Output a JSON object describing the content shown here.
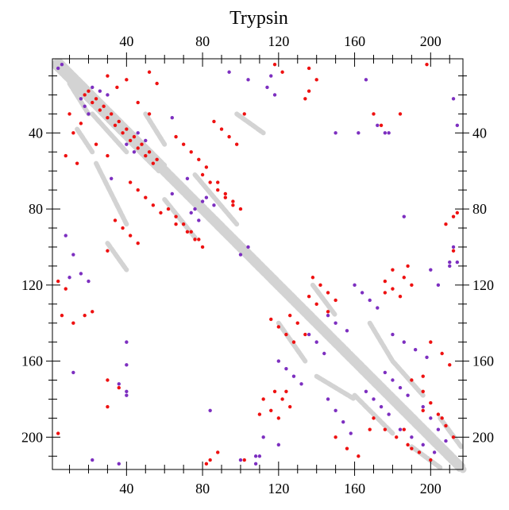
{
  "chart_data": {
    "type": "scatter",
    "subtype": "protein contact map",
    "title": "Trypsin",
    "xlabel": "",
    "ylabel": "",
    "xlim": [
      1,
      217
    ],
    "ylim": [
      1,
      217
    ],
    "y_inverted": true,
    "x_ticks": [
      40,
      80,
      120,
      160,
      200
    ],
    "y_ticks": [
      40,
      80,
      120,
      160,
      200
    ],
    "colors": {
      "background_contacts": "#d3d3d3",
      "red_points": "#ee1111",
      "purple_points": "#7d2fc0",
      "axis": "#000000"
    },
    "background_segments": [
      [
        3,
        3,
        217,
        217
      ],
      [
        4,
        2,
        217,
        215
      ],
      [
        2,
        4,
        215,
        217
      ],
      [
        5,
        2,
        60,
        57
      ],
      [
        2,
        5,
        57,
        60
      ],
      [
        10,
        14,
        20,
        30
      ],
      [
        22,
        30,
        40,
        50
      ],
      [
        14,
        38,
        22,
        50
      ],
      [
        60,
        75,
        76,
        95
      ],
      [
        76,
        62,
        98,
        88
      ],
      [
        24,
        56,
        40,
        88
      ],
      [
        50,
        30,
        60,
        46
      ],
      [
        120,
        140,
        134,
        160
      ],
      [
        138,
        120,
        150,
        136
      ],
      [
        160,
        178,
        180,
        198
      ],
      [
        180,
        160,
        196,
        178
      ],
      [
        190,
        205,
        205,
        216
      ],
      [
        205,
        190,
        216,
        205
      ],
      [
        30,
        98,
        40,
        112
      ],
      [
        98,
        30,
        112,
        40
      ],
      [
        140,
        168,
        160,
        180
      ],
      [
        168,
        140,
        180,
        160
      ]
    ],
    "series": [
      {
        "color_key": "red_points",
        "points": [
          [
            18,
            20
          ],
          [
            20,
            18
          ],
          [
            22,
            24
          ],
          [
            24,
            22
          ],
          [
            26,
            28
          ],
          [
            28,
            26
          ],
          [
            30,
            32
          ],
          [
            32,
            30
          ],
          [
            34,
            36
          ],
          [
            36,
            34
          ],
          [
            38,
            40
          ],
          [
            40,
            38
          ],
          [
            42,
            44
          ],
          [
            44,
            42
          ],
          [
            46,
            48
          ],
          [
            48,
            46
          ],
          [
            50,
            52
          ],
          [
            52,
            50
          ],
          [
            54,
            56
          ],
          [
            56,
            54
          ],
          [
            30,
            10
          ],
          [
            10,
            30
          ],
          [
            35,
            16
          ],
          [
            16,
            35
          ],
          [
            40,
            12
          ],
          [
            12,
            40
          ],
          [
            46,
            24
          ],
          [
            24,
            46
          ],
          [
            52,
            30
          ],
          [
            30,
            52
          ],
          [
            62,
            80
          ],
          [
            80,
            62
          ],
          [
            66,
            84
          ],
          [
            84,
            66
          ],
          [
            70,
            88
          ],
          [
            88,
            70
          ],
          [
            74,
            92
          ],
          [
            92,
            74
          ],
          [
            78,
            96
          ],
          [
            96,
            78
          ],
          [
            66,
            42
          ],
          [
            42,
            66
          ],
          [
            70,
            46
          ],
          [
            46,
            70
          ],
          [
            74,
            50
          ],
          [
            50,
            74
          ],
          [
            78,
            54
          ],
          [
            54,
            78
          ],
          [
            82,
            58
          ],
          [
            58,
            82
          ],
          [
            86,
            34
          ],
          [
            34,
            86
          ],
          [
            90,
            38
          ],
          [
            38,
            90
          ],
          [
            94,
            42
          ],
          [
            42,
            94
          ],
          [
            98,
            46
          ],
          [
            46,
            98
          ],
          [
            102,
            30
          ],
          [
            30,
            102
          ],
          [
            88,
            66
          ],
          [
            66,
            88
          ],
          [
            92,
            72
          ],
          [
            72,
            92
          ],
          [
            96,
            76
          ],
          [
            76,
            96
          ],
          [
            100,
            80
          ],
          [
            80,
            100
          ],
          [
            118,
            4
          ],
          [
            4,
            118
          ],
          [
            122,
            8
          ],
          [
            8,
            122
          ],
          [
            136,
            6
          ],
          [
            6,
            136
          ],
          [
            140,
            12
          ],
          [
            12,
            140
          ],
          [
            126,
            136
          ],
          [
            136,
            126
          ],
          [
            130,
            140
          ],
          [
            140,
            130
          ],
          [
            134,
            146
          ],
          [
            146,
            134
          ],
          [
            138,
            116
          ],
          [
            116,
            138
          ],
          [
            142,
            120
          ],
          [
            120,
            142
          ],
          [
            146,
            124
          ],
          [
            124,
            146
          ],
          [
            150,
            128
          ],
          [
            128,
            150
          ],
          [
            118,
            176
          ],
          [
            176,
            118
          ],
          [
            122,
            180
          ],
          [
            180,
            122
          ],
          [
            126,
            184
          ],
          [
            184,
            126
          ],
          [
            110,
            188
          ],
          [
            188,
            110
          ],
          [
            170,
            190
          ],
          [
            190,
            170
          ],
          [
            176,
            196
          ],
          [
            196,
            176
          ],
          [
            182,
            200
          ],
          [
            200,
            182
          ],
          [
            188,
            204
          ],
          [
            204,
            188
          ],
          [
            194,
            208
          ],
          [
            208,
            194
          ],
          [
            200,
            212
          ],
          [
            212,
            200
          ],
          [
            206,
            190
          ],
          [
            190,
            206
          ],
          [
            196,
            186
          ],
          [
            186,
            196
          ],
          [
            180,
            112
          ],
          [
            112,
            180
          ],
          [
            186,
            116
          ],
          [
            116,
            186
          ],
          [
            190,
            120
          ],
          [
            120,
            190
          ],
          [
            176,
            124
          ],
          [
            124,
            176
          ],
          [
            200,
            150
          ],
          [
            150,
            200
          ],
          [
            206,
            156
          ],
          [
            156,
            206
          ],
          [
            210,
            162
          ],
          [
            162,
            210
          ],
          [
            196,
            168
          ],
          [
            168,
            196
          ],
          [
            214,
            82
          ],
          [
            82,
            214
          ],
          [
            212,
            102
          ],
          [
            102,
            212
          ],
          [
            198,
            4
          ],
          [
            4,
            198
          ],
          [
            184,
            30
          ],
          [
            30,
            184
          ],
          [
            52,
            8
          ],
          [
            8,
            52
          ],
          [
            56,
            14
          ],
          [
            14,
            56
          ],
          [
            30,
            170
          ],
          [
            170,
            30
          ],
          [
            36,
            174
          ],
          [
            174,
            36
          ],
          [
            18,
            136
          ],
          [
            136,
            18
          ],
          [
            22,
            134
          ],
          [
            134,
            22
          ],
          [
            84,
            212
          ],
          [
            212,
            84
          ],
          [
            88,
            208
          ],
          [
            208,
            88
          ]
        ]
      },
      {
        "color_key": "purple_points",
        "points": [
          [
            16,
            22
          ],
          [
            22,
            16
          ],
          [
            18,
            26
          ],
          [
            26,
            18
          ],
          [
            20,
            30
          ],
          [
            30,
            20
          ],
          [
            40,
            46
          ],
          [
            46,
            40
          ],
          [
            44,
            50
          ],
          [
            50,
            44
          ],
          [
            74,
            82
          ],
          [
            82,
            74
          ],
          [
            78,
            86
          ],
          [
            86,
            78
          ],
          [
            72,
            64
          ],
          [
            64,
            72
          ],
          [
            76,
            80
          ],
          [
            80,
            76
          ],
          [
            4,
            6
          ],
          [
            6,
            4
          ],
          [
            12,
            104
          ],
          [
            104,
            12
          ],
          [
            40,
            150
          ],
          [
            150,
            40
          ],
          [
            40,
            162
          ],
          [
            162,
            40
          ],
          [
            22,
            212
          ],
          [
            212,
            22
          ],
          [
            104,
            100
          ],
          [
            100,
            104
          ],
          [
            110,
            210
          ],
          [
            210,
            110
          ],
          [
            108,
            214
          ],
          [
            214,
            108
          ],
          [
            136,
            146
          ],
          [
            146,
            136
          ],
          [
            140,
            150
          ],
          [
            150,
            140
          ],
          [
            144,
            156
          ],
          [
            156,
            144
          ],
          [
            166,
            176
          ],
          [
            176,
            166
          ],
          [
            170,
            180
          ],
          [
            180,
            170
          ],
          [
            174,
            184
          ],
          [
            184,
            174
          ],
          [
            178,
            188
          ],
          [
            188,
            178
          ],
          [
            184,
            196
          ],
          [
            196,
            184
          ],
          [
            190,
            200
          ],
          [
            200,
            190
          ],
          [
            196,
            204
          ],
          [
            204,
            196
          ],
          [
            202,
            208
          ],
          [
            208,
            202
          ],
          [
            160,
            120
          ],
          [
            120,
            160
          ],
          [
            164,
            124
          ],
          [
            124,
            164
          ],
          [
            168,
            128
          ],
          [
            128,
            168
          ],
          [
            172,
            132
          ],
          [
            132,
            172
          ],
          [
            180,
            146
          ],
          [
            146,
            180
          ],
          [
            186,
            150
          ],
          [
            150,
            186
          ],
          [
            192,
            154
          ],
          [
            154,
            192
          ],
          [
            198,
            158
          ],
          [
            158,
            198
          ],
          [
            108,
            210
          ],
          [
            210,
            108
          ],
          [
            112,
            200
          ],
          [
            200,
            112
          ],
          [
            100,
            212
          ],
          [
            212,
            100
          ],
          [
            166,
            12
          ],
          [
            12,
            166
          ],
          [
            178,
            40
          ],
          [
            40,
            178
          ],
          [
            186,
            84
          ],
          [
            84,
            186
          ],
          [
            204,
            120
          ],
          [
            120,
            204
          ],
          [
            36,
            172
          ],
          [
            172,
            36
          ],
          [
            40,
            176
          ],
          [
            176,
            40
          ],
          [
            214,
            36
          ],
          [
            36,
            214
          ],
          [
            64,
            32
          ],
          [
            32,
            64
          ],
          [
            16,
            114
          ],
          [
            114,
            16
          ],
          [
            20,
            118
          ],
          [
            118,
            20
          ],
          [
            8,
            94
          ],
          [
            94,
            8
          ],
          [
            10,
            116
          ],
          [
            116,
            10
          ]
        ]
      }
    ]
  }
}
